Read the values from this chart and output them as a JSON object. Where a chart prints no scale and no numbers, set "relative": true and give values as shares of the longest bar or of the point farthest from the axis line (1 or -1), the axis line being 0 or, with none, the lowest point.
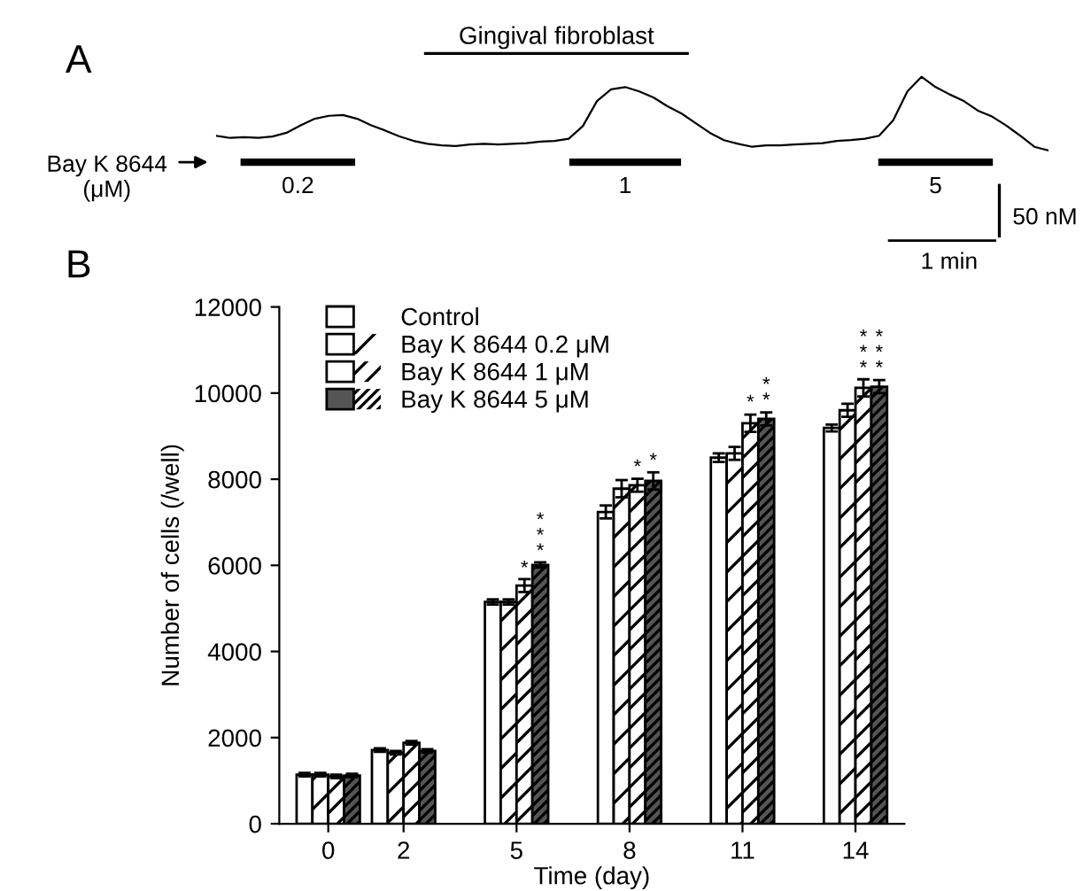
{
  "chart_data": [
    {
      "type": "line",
      "title": "Gingival fibroblast",
      "relative": true,
      "categories": [
        null,
        null,
        null,
        null,
        null,
        null,
        null,
        null,
        null,
        null,
        null,
        null,
        null,
        null,
        null,
        null,
        null,
        null,
        null,
        null,
        null,
        null,
        null,
        null,
        null,
        null,
        null,
        null,
        null,
        null,
        null,
        null,
        null,
        null,
        null,
        null,
        null,
        null,
        null,
        null,
        null,
        null,
        null,
        null,
        null,
        null,
        null,
        null,
        null,
        null,
        null,
        null,
        null,
        null,
        null,
        null,
        null,
        null,
        null,
        null
      ],
      "series": [
        {
          "color": "#000000",
          "values": [
            0.2,
            0.17,
            0.18,
            0.17,
            0.19,
            0.24,
            0.34,
            0.43,
            0.47,
            0.48,
            0.43,
            0.34,
            0.27,
            0.19,
            0.13,
            0.09,
            0.07,
            0.06,
            0.08,
            0.09,
            0.08,
            0.09,
            0.1,
            0.12,
            0.13,
            0.16,
            0.33,
            0.67,
            0.83,
            0.86,
            0.8,
            0.72,
            0.6,
            0.5,
            0.37,
            0.24,
            0.14,
            0.09,
            0.05,
            0.07,
            0.07,
            0.08,
            0.09,
            0.1,
            0.13,
            0.14,
            0.16,
            0.2,
            0.41,
            0.8,
            1,
            0.86,
            0.76,
            0.67,
            0.54,
            0.46,
            0.34,
            0.2,
            0.05,
            0
          ]
        }
      ],
      "annotations": [
        "A",
        "Bay K 8644\n(μM)",
        "0.2",
        "1",
        "5",
        "50 nM",
        "1 min"
      ]
    },
    {
      "type": "bar",
      "x": [
        0,
        2,
        5,
        8,
        11,
        14
      ],
      "xlim": [
        -1.3,
        15.3
      ],
      "xticks": [
        0,
        2,
        5,
        8,
        11,
        14
      ],
      "ylim": [
        0,
        12000
      ],
      "yticks": [
        0,
        2000,
        4000,
        6000,
        8000,
        10000,
        12000
      ],
      "xlabel": "Time (day)",
      "ylabel": "Number of cells (/well)",
      "legend": "top left",
      "series": [
        {
          "name": "Control",
          "color": "#ffffff",
          "values": [
            1140,
            1710,
            5150,
            7240,
            8500,
            9190
          ],
          "errors": [
            40,
            40,
            60,
            150,
            100,
            80
          ]
        },
        {
          "name": "Bay K 8644 0.2 μM",
          "color": "#ffffff",
          "values": [
            1140,
            1650,
            5150,
            7780,
            8600,
            9600
          ],
          "errors": [
            40,
            40,
            60,
            200,
            150,
            150
          ]
        },
        {
          "name": "Bay K 8644 1 μM",
          "color": "#ffffff",
          "values": [
            1100,
            1880,
            5530,
            7860,
            9300,
            10120
          ],
          "errors": [
            40,
            40,
            150,
            150,
            200,
            200
          ]
        },
        {
          "name": "Bay K 8644 5 μM",
          "color": "#555555",
          "values": [
            1120,
            1690,
            6010,
            7960,
            9400,
            10150
          ],
          "errors": [
            40,
            40,
            60,
            200,
            150,
            150
          ]
        }
      ],
      "annotations": [
        "B",
        {
          "text": "*",
          "x": 5.21,
          "y": 5700
        },
        {
          "text": "*\n*\n*",
          "x": 5.63,
          "y": 6100
        },
        {
          "text": "*",
          "x": 8.21,
          "y": 8050
        },
        {
          "text": "*",
          "x": 8.63,
          "y": 8200
        },
        {
          "text": "*",
          "x": 11.21,
          "y": 9550
        },
        {
          "text": "*\n*",
          "x": 11.63,
          "y": 9600
        },
        {
          "text": "*\n*\n*",
          "x": 14.21,
          "y": 10350
        },
        {
          "text": "*\n*\n*",
          "x": 14.63,
          "y": 10350
        }
      ]
    }
  ]
}
